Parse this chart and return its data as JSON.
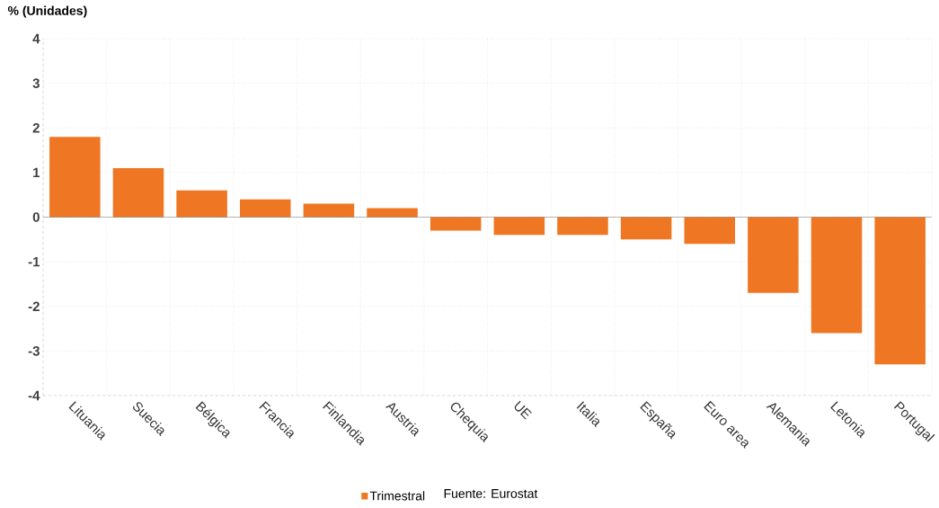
{
  "chart_data": {
    "type": "bar",
    "ylabel": "% (Unidades)",
    "categories": [
      "Lituania",
      "Suecia",
      "Bélgica",
      "Francia",
      "Finlandia",
      "Austria",
      "Chequia",
      "UE",
      "Italia",
      "España",
      "Euro area",
      "Alemania",
      "Letonia",
      "Portugal"
    ],
    "series": [
      {
        "name": "Trimestral",
        "color": "#ef7622",
        "values": [
          1.8,
          1.1,
          0.6,
          0.4,
          0.3,
          0.2,
          -0.3,
          -0.4,
          -0.4,
          -0.5,
          -0.6,
          -1.7,
          -2.6,
          -3.3
        ]
      }
    ],
    "ylim": [
      -4,
      4
    ],
    "yticks": [
      -4,
      -3,
      -2,
      -1,
      0,
      1,
      2,
      3,
      4
    ],
    "grid": true,
    "legend": "bottom",
    "annotations": [
      "Fuente: Eurostat"
    ]
  }
}
